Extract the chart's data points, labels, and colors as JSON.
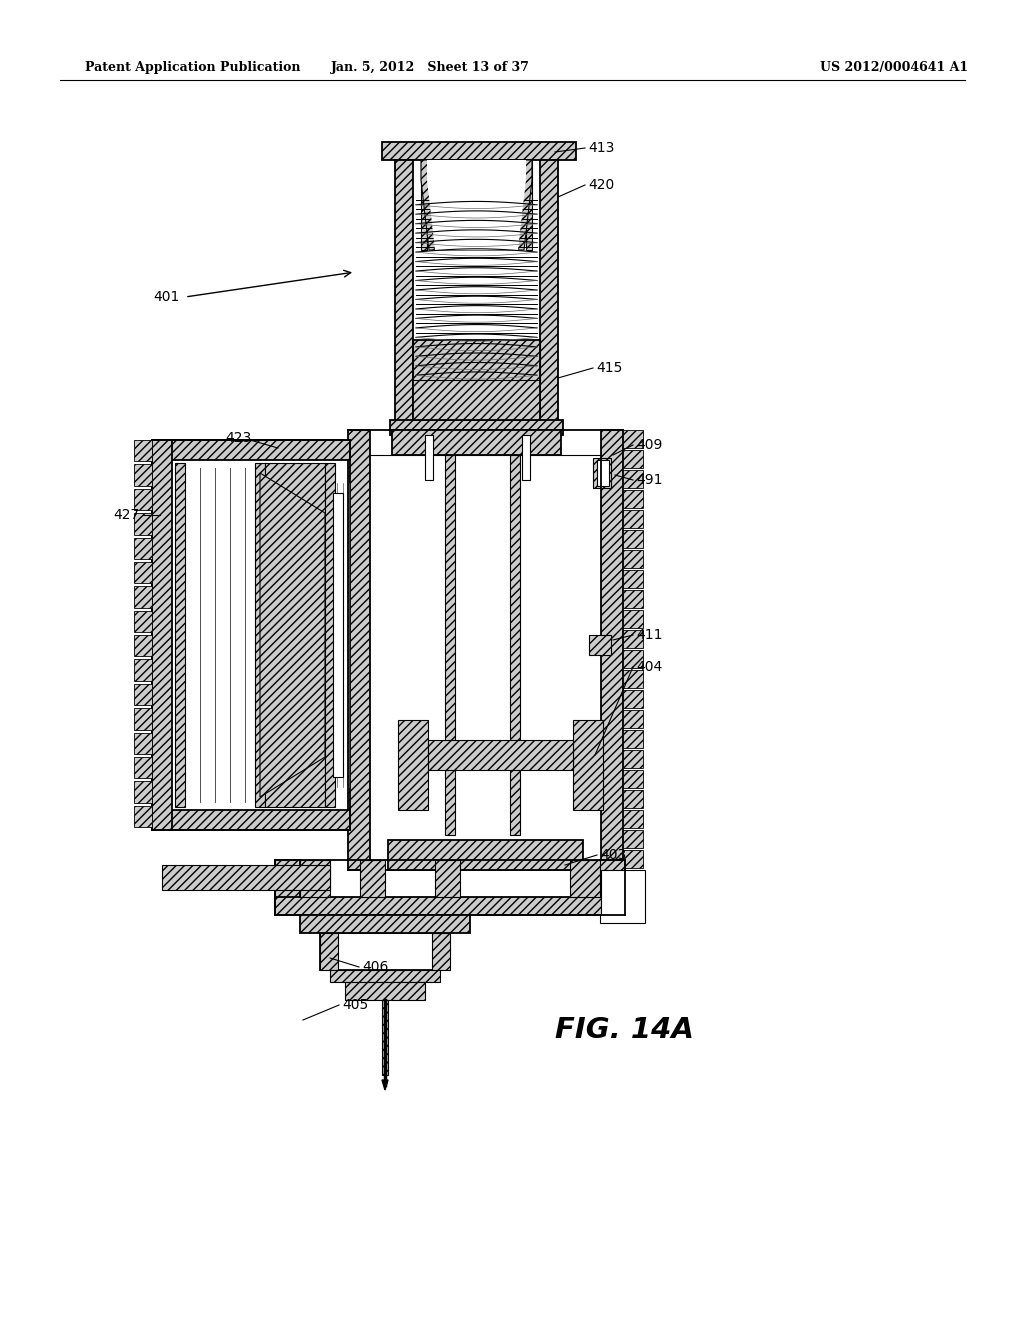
{
  "header_left": "Patent Application Publication",
  "header_center": "Jan. 5, 2012   Sheet 13 of 37",
  "header_right": "US 2012/0004641 A1",
  "fig_label": "FIG. 14A",
  "background": "#ffffff",
  "hatch_density": "////",
  "lw_thin": 0.8,
  "lw_med": 1.3,
  "lw_thick": 2.0
}
